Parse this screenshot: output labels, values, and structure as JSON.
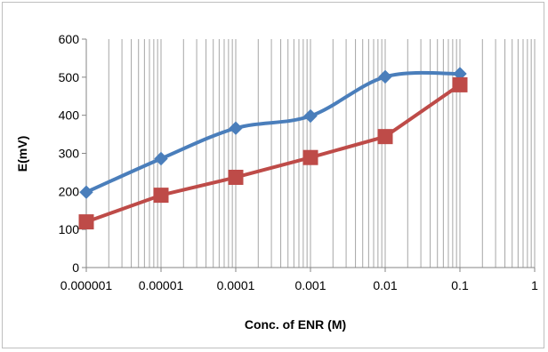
{
  "chart_data": {
    "type": "line",
    "xscale": "log",
    "title": "",
    "xlabel": "Conc. of  ENR (M)",
    "ylabel": "E(mV)",
    "xlim": [
      1e-06,
      1
    ],
    "ylim": [
      0,
      600
    ],
    "x_tick_labels": [
      "0.000001",
      "0.00001",
      "0.0001",
      "0.001",
      "0.01",
      "0.1",
      "1"
    ],
    "y_tick_labels": [
      "0",
      "100",
      "200",
      "300",
      "400",
      "500",
      "600"
    ],
    "grid": "vertical major and minor lines",
    "legend": "none",
    "x": [
      1e-06,
      1e-05,
      0.0001,
      0.001,
      0.01,
      0.1
    ],
    "series": [
      {
        "color": "#4a7ebb",
        "marker": "diamond",
        "smooth": true,
        "values": [
          198,
          286,
          366,
          398,
          501,
          509
        ]
      },
      {
        "color": "#be4b48",
        "marker": "square",
        "smooth": false,
        "values": [
          120,
          190,
          237,
          289,
          344,
          480
        ]
      }
    ]
  }
}
